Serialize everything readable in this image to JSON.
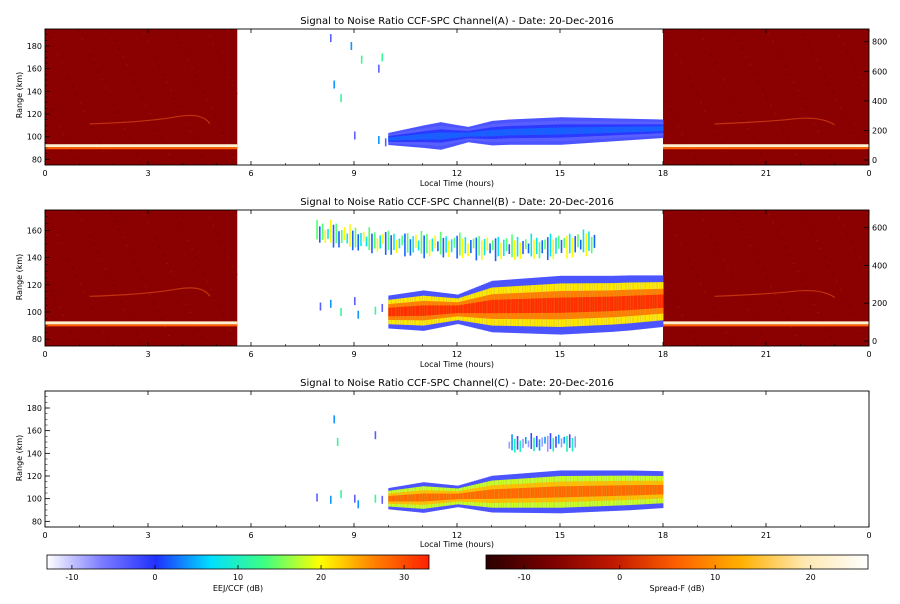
{
  "page": {
    "background": "#ffffff"
  },
  "panels": [
    {
      "id": "A",
      "title": "Signal to Noise Ratio CCF-SPC Channel(A) - Date: 20-Dec-2016",
      "xlabel": "Local Time (hours)",
      "ylabel": "Range (km)",
      "x_ticks": [
        "0",
        "3",
        "6",
        "9",
        "12",
        "15",
        "18",
        "21",
        "0"
      ],
      "x_tick_hours": [
        0,
        3,
        6,
        9,
        12,
        15,
        18,
        21,
        24
      ],
      "y_ticks": [
        "80",
        "100",
        "120",
        "140",
        "160",
        "180"
      ],
      "y_tick_km": [
        80,
        100,
        120,
        140,
        160,
        180
      ],
      "right_ticks": [
        "0",
        "200",
        "400",
        "600",
        "800"
      ],
      "right_tick_values": [
        0,
        200,
        400,
        600,
        800
      ],
      "has_spreadf": true,
      "ccf_band": {
        "start_h": 10.0,
        "end_h": 18.0,
        "center_km": [
          [
            10.0,
            98
          ],
          [
            11.0,
            100
          ],
          [
            11.8,
            101
          ],
          [
            12.4,
            102
          ],
          [
            13.5,
            104
          ],
          [
            15.0,
            105
          ],
          [
            16.5,
            106
          ],
          [
            18.0,
            107
          ]
        ],
        "thickness_km": [
          [
            10.0,
            4
          ],
          [
            11.5,
            9
          ],
          [
            12.3,
            5
          ],
          [
            13.0,
            8
          ],
          [
            15.0,
            9
          ],
          [
            17.0,
            7
          ],
          [
            18.0,
            6
          ]
        ],
        "peak_db": 2,
        "background_db": -6
      },
      "scatter": [
        [
          8.3,
          187
        ],
        [
          8.9,
          180
        ],
        [
          9.2,
          168
        ],
        [
          9.7,
          160
        ],
        [
          8.4,
          146
        ],
        [
          8.6,
          134
        ],
        [
          9.0,
          101
        ],
        [
          9.7,
          97
        ],
        [
          9.8,
          170
        ],
        [
          9.9,
          95
        ]
      ]
    },
    {
      "id": "B",
      "title": "Signal to Noise Ratio CCF-SPC Channel(B) - Date: 20-Dec-2016",
      "xlabel": "Local Time (hours)",
      "ylabel": "Range (km)",
      "x_ticks": [
        "0",
        "3",
        "6",
        "9",
        "12",
        "15",
        "18",
        "21",
        "0"
      ],
      "x_tick_hours": [
        0,
        3,
        6,
        9,
        12,
        15,
        18,
        21,
        24
      ],
      "y_ticks": [
        "80",
        "100",
        "120",
        "140",
        "160"
      ],
      "y_tick_km": [
        80,
        100,
        120,
        140,
        160
      ],
      "right_ticks": [
        "0",
        "200",
        "400",
        "600"
      ],
      "right_tick_values": [
        0,
        200,
        400,
        600
      ],
      "has_spreadf": true,
      "ccf_band": {
        "start_h": 10.0,
        "end_h": 18.0,
        "center_km": [
          [
            10.0,
            100
          ],
          [
            11.0,
            101
          ],
          [
            12.0,
            102
          ],
          [
            13.0,
            104
          ],
          [
            15.0,
            105
          ],
          [
            16.5,
            106
          ],
          [
            18.0,
            108
          ]
        ],
        "thickness_km": [
          [
            10.0,
            9
          ],
          [
            11.0,
            11
          ],
          [
            12.0,
            8
          ],
          [
            13.0,
            14
          ],
          [
            15.0,
            16
          ],
          [
            17.0,
            15
          ],
          [
            18.0,
            14
          ]
        ],
        "peak_db": 32,
        "background_db": 14
      },
      "scatter": [
        [
          8.0,
          104
        ],
        [
          8.3,
          106
        ],
        [
          8.6,
          100
        ],
        [
          9.0,
          108
        ],
        [
          9.1,
          98
        ],
        [
          9.6,
          101
        ],
        [
          9.8,
          103
        ]
      ],
      "upper_layer": {
        "start_h": 7.9,
        "end_h": 16.0,
        "center_km": [
          [
            7.9,
            159
          ],
          [
            8.5,
            156
          ],
          [
            9.5,
            152
          ],
          [
            10.5,
            150
          ],
          [
            11.5,
            149
          ],
          [
            12.5,
            148
          ],
          [
            13.5,
            147
          ],
          [
            14.5,
            148
          ],
          [
            15.5,
            150
          ],
          [
            16.0,
            152
          ]
        ],
        "thickness_km": 12,
        "peak_db": 20
      }
    },
    {
      "id": "C",
      "title": "Signal to Noise Ratio CCF-SPC Channel(C) - Date: 20-Dec-2016",
      "xlabel": "Local Time (hours)",
      "ylabel": "Range (km)",
      "x_ticks": [
        "0",
        "3",
        "6",
        "9",
        "12",
        "15",
        "18",
        "21",
        "0"
      ],
      "x_tick_hours": [
        0,
        3,
        6,
        9,
        12,
        15,
        18,
        21,
        24
      ],
      "y_ticks": [
        "80",
        "100",
        "120",
        "140",
        "160",
        "180"
      ],
      "y_tick_km": [
        80,
        100,
        120,
        140,
        160,
        180
      ],
      "right_ticks": [],
      "right_tick_values": [],
      "has_spreadf": false,
      "ccf_band": {
        "start_h": 10.0,
        "end_h": 18.0,
        "center_km": [
          [
            10.0,
            100
          ],
          [
            11.0,
            101
          ],
          [
            12.0,
            102
          ],
          [
            13.0,
            104
          ],
          [
            15.0,
            106
          ],
          [
            16.5,
            107
          ],
          [
            18.0,
            108
          ]
        ],
        "thickness_km": [
          [
            10.0,
            7
          ],
          [
            11.0,
            10
          ],
          [
            12.0,
            7
          ],
          [
            13.0,
            12
          ],
          [
            15.0,
            14
          ],
          [
            17.0,
            13
          ],
          [
            18.0,
            12
          ]
        ],
        "peak_db": 28,
        "background_db": 12
      },
      "scatter": [
        [
          7.9,
          101
        ],
        [
          8.3,
          99
        ],
        [
          8.6,
          104
        ],
        [
          9.0,
          100
        ],
        [
          9.1,
          95
        ],
        [
          9.6,
          100
        ],
        [
          9.8,
          99
        ],
        [
          8.4,
          170
        ],
        [
          8.5,
          150
        ],
        [
          9.6,
          156
        ]
      ],
      "upper_layer": {
        "start_h": 13.5,
        "end_h": 15.5,
        "center_km": [
          [
            13.5,
            148
          ],
          [
            14.5,
            150
          ],
          [
            15.5,
            150
          ]
        ],
        "thickness_km": 10,
        "peak_db": 10
      }
    }
  ],
  "colorbars": [
    {
      "id": "ccf",
      "label": "EEJ/CCF (dB)",
      "ticks": [
        "-10",
        "0",
        "10",
        "20",
        "30"
      ],
      "tick_values": [
        -10,
        0,
        10,
        20,
        30
      ],
      "range": [
        -13,
        33
      ],
      "colors": [
        "#ffffff",
        "#7c7cff",
        "#2030ff",
        "#00e0ff",
        "#40ff80",
        "#ffff00",
        "#ff8000",
        "#ff2000"
      ]
    },
    {
      "id": "spreadf",
      "label": "Spread-F (dB)",
      "ticks": [
        "-10",
        "0",
        "10",
        "20"
      ],
      "tick_values": [
        -10,
        0,
        10,
        20
      ],
      "range": [
        -14,
        26
      ],
      "colors": [
        "#2a0000",
        "#7a0000",
        "#c01800",
        "#ff6000",
        "#ffb000",
        "#ffe8b0",
        "#ffffff"
      ]
    }
  ],
  "spreadf_field": {
    "start_h": 0.0,
    "end_h": 5.6,
    "start2_h": 18.0,
    "end2_h": 24.0,
    "baseline_km": 92,
    "echo_band_km": 113,
    "base_color": "#8b0000"
  }
}
